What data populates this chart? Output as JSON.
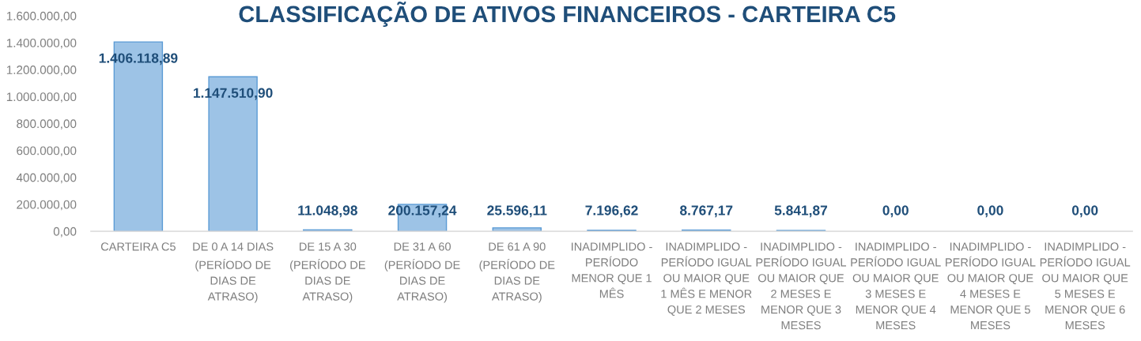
{
  "chart_data": {
    "type": "bar",
    "title": "CLASSIFICAÇÃO DE ATIVOS FINANCEIROS - CARTEIRA C5",
    "categories": [
      "CARTEIRA C5",
      "DE 0 A 14 DIAS (PERÍODO DE DIAS DE ATRASO)",
      "DE 15 A 30 (PERÍODO DE DIAS DE ATRASO)",
      "DE 31 A 60 (PERÍODO DE DIAS DE ATRASO)",
      "DE 61 A 90 (PERÍODO DE DIAS DE ATRASO)",
      "INADIMPLIDO - PERÍODO MENOR QUE 1 MÊS",
      "INADIMPLIDO - PERÍODO IGUAL OU MAIOR QUE 1 MÊS E MENOR QUE 2 MESES",
      "INADIMPLIDO - PERÍODO IGUAL OU MAIOR QUE 2 MESES E MENOR QUE 3 MESES",
      "INADIMPLIDO - PERÍODO IGUAL OU MAIOR QUE 3 MESES E MENOR QUE 4 MESES",
      "INADIMPLIDO - PERÍODO IGUAL OU MAIOR QUE 4 MESES E MENOR QUE 5 MESES",
      "INADIMPLIDO - PERÍODO IGUAL OU MAIOR QUE 5 MESES E MENOR QUE 6 MESES"
    ],
    "values": [
      1406118.89,
      1147510.9,
      11048.98,
      200157.24,
      25596.11,
      7196.62,
      8767.17,
      5841.87,
      0,
      0,
      0
    ],
    "value_labels": [
      "1.406.118,89",
      "1.147.510,90",
      "11.048,98",
      "200.157,24",
      "25.596,11",
      "7.196,62",
      "8.767,17",
      "5.841,87",
      "0,00",
      "0,00",
      "0,00"
    ],
    "color": "#9dc3e6",
    "ylim": [
      0,
      1600000
    ],
    "yticks": [
      {
        "value": 0,
        "label": "0,00"
      },
      {
        "value": 200000,
        "label": "200.000,00"
      },
      {
        "value": 400000,
        "label": "400.000,00"
      },
      {
        "value": 600000,
        "label": "600.000,00"
      },
      {
        "value": 800000,
        "label": "800.000,00"
      },
      {
        "value": 1000000,
        "label": "1.000.000,00"
      },
      {
        "value": 1200000,
        "label": "1.200.000,00"
      },
      {
        "value": 1400000,
        "label": "1.400.000,00"
      },
      {
        "value": 1600000,
        "label": "1.600.000,00"
      }
    ]
  }
}
